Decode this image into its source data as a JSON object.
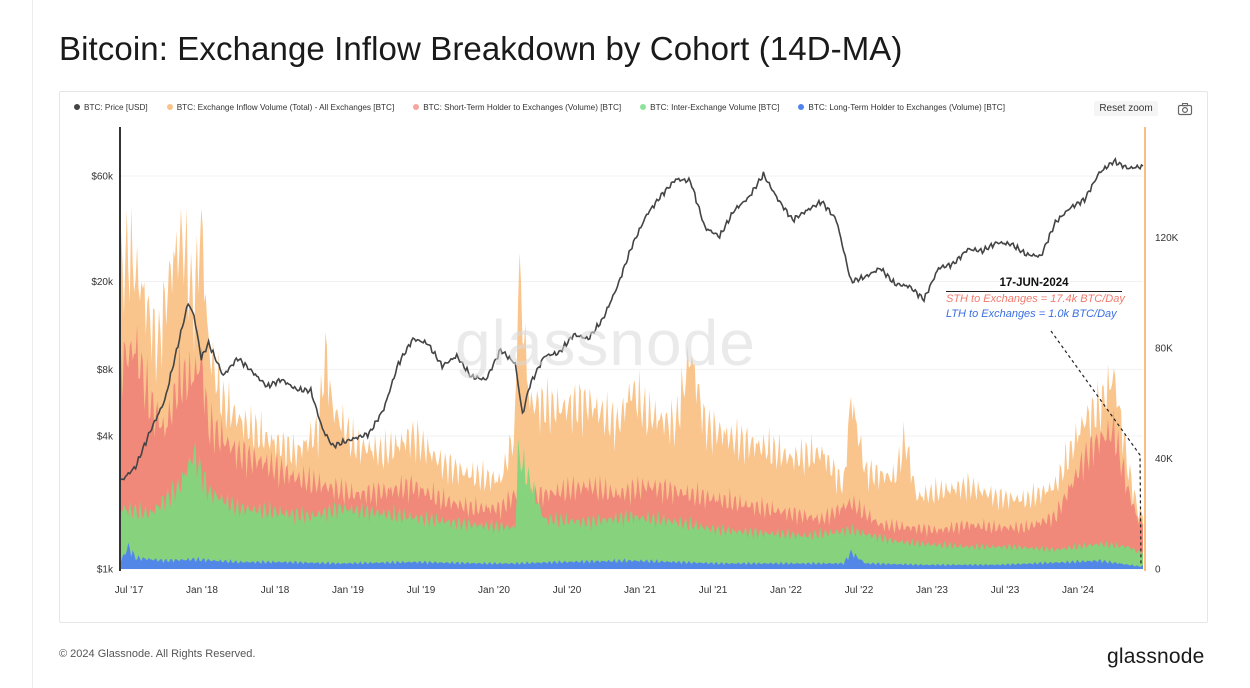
{
  "title": "Bitcoin: Exchange Inflow Breakdown by Cohort (14D-MA)",
  "copyright": "© 2024 Glassnode. All Rights Reserved.",
  "brand": "glassnode",
  "reset_zoom_label": "Reset zoom",
  "watermark": "glassnode",
  "colors": {
    "price": "#444444",
    "total": "#f9bf7f",
    "sth": "#f0867a",
    "inter": "#7fd67d",
    "lth": "#4f83ee"
  },
  "legend": [
    {
      "label": "BTC: Price [USD]",
      "color": "#444444"
    },
    {
      "label": "BTC: Exchange Inflow Volume (Total) - All Exchanges [BTC]",
      "color": "#f9c48a"
    },
    {
      "label": "BTC: Short-Term Holder to Exchanges (Volume) [BTC]",
      "color": "#f6a5a0"
    },
    {
      "label": "BTC: Inter-Exchange Volume [BTC]",
      "color": "#8ee39a"
    },
    {
      "label": "BTC: Long-Term Holder to Exchanges (Volume) [BTC]",
      "color": "#4f83ee"
    }
  ],
  "annotation": {
    "date": "17-JUN-2024",
    "sth": "STH to Exchanges = 17.4k BTC/Day",
    "lth": "LTH to Exchanges = 1.0k BTC/Day"
  },
  "chart_data": {
    "type": "area",
    "title": "Bitcoin: Exchange Inflow Breakdown by Cohort (14D-MA)",
    "x_ticks": [
      "Jul '17",
      "Jan '18",
      "Jul '18",
      "Jan '19",
      "Jul '19",
      "Jan '20",
      "Jul '20",
      "Jan '21",
      "Jul '21",
      "Jan '22",
      "Jul '22",
      "Jan '23",
      "Jul '23",
      "Jan '24"
    ],
    "x_range": [
      2017.5,
      2024.5
    ],
    "y_left": {
      "scale": "log",
      "range": [
        1000,
        100000
      ],
      "ticks": [
        {
          "value": 1000,
          "label": "$1k"
        },
        {
          "value": 4000,
          "label": "$4k"
        },
        {
          "value": 8000,
          "label": "$8k"
        },
        {
          "value": 20000,
          "label": "$20k"
        },
        {
          "value": 60000,
          "label": "$60k"
        }
      ]
    },
    "y_right": {
      "scale": "linear",
      "range": [
        0,
        160000
      ],
      "ticks": [
        {
          "value": 0,
          "label": "0"
        },
        {
          "value": 40000,
          "label": "40K"
        },
        {
          "value": 80000,
          "label": "80K"
        },
        {
          "value": 120000,
          "label": "120K"
        }
      ]
    },
    "series": [
      {
        "name": "BTC: Price [USD]",
        "axis": "left",
        "x": [
          2017.5,
          2017.6,
          2017.7,
          2017.8,
          2017.9,
          2017.96,
          2018.0,
          2018.05,
          2018.1,
          2018.2,
          2018.3,
          2018.4,
          2018.5,
          2018.6,
          2018.7,
          2018.8,
          2018.88,
          2018.95,
          2019.0,
          2019.1,
          2019.2,
          2019.3,
          2019.4,
          2019.5,
          2019.6,
          2019.7,
          2019.8,
          2019.9,
          2020.0,
          2020.1,
          2020.2,
          2020.25,
          2020.3,
          2020.4,
          2020.5,
          2020.6,
          2020.7,
          2020.8,
          2020.9,
          2021.0,
          2021.1,
          2021.2,
          2021.3,
          2021.4,
          2021.5,
          2021.6,
          2021.7,
          2021.8,
          2021.9,
          2022.0,
          2022.1,
          2022.2,
          2022.3,
          2022.4,
          2022.5,
          2022.6,
          2022.7,
          2022.8,
          2022.9,
          2023.0,
          2023.1,
          2023.2,
          2023.3,
          2023.4,
          2023.5,
          2023.6,
          2023.7,
          2023.8,
          2023.9,
          2024.0,
          2024.1,
          2024.2,
          2024.3,
          2024.4,
          2024.47
        ],
        "values": [
          2500,
          2900,
          4200,
          5800,
          11000,
          16000,
          14000,
          9000,
          10500,
          7500,
          9000,
          7800,
          6700,
          7200,
          6500,
          6400,
          4300,
          3600,
          3700,
          3900,
          4100,
          5300,
          8500,
          11000,
          10500,
          8300,
          9200,
          7400,
          7200,
          9800,
          8500,
          5000,
          6800,
          9200,
          9500,
          11500,
          11000,
          13500,
          19000,
          29000,
          40000,
          49000,
          58000,
          57000,
          35000,
          32000,
          42000,
          48000,
          61000,
          47000,
          38000,
          42000,
          46000,
          38000,
          20000,
          21000,
          23000,
          19500,
          19000,
          16600,
          23000,
          24000,
          28000,
          27500,
          30000,
          29500,
          26500,
          26000,
          37000,
          43000,
          47000,
          62000,
          70000,
          65000,
          66000
        ]
      },
      {
        "name": "BTC: Exchange Inflow Volume (Total) - All Exchanges [BTC]",
        "axis": "right",
        "x": [
          2017.5,
          2017.55,
          2017.65,
          2017.75,
          2017.85,
          2017.92,
          2018.0,
          2018.05,
          2018.1,
          2018.2,
          2018.35,
          2018.5,
          2018.7,
          2018.85,
          2018.9,
          2018.95,
          2019.1,
          2019.3,
          2019.5,
          2019.7,
          2019.9,
          2020.1,
          2020.2,
          2020.22,
          2020.3,
          2020.5,
          2020.7,
          2020.9,
          2021.0,
          2021.1,
          2021.3,
          2021.4,
          2021.5,
          2021.7,
          2021.9,
          2022.1,
          2022.3,
          2022.45,
          2022.5,
          2022.6,
          2022.8,
          2022.87,
          2022.95,
          2023.1,
          2023.3,
          2023.5,
          2023.7,
          2023.9,
          2024.1,
          2024.2,
          2024.3,
          2024.4,
          2024.47
        ],
        "values": [
          105000,
          115000,
          100000,
          80000,
          110000,
          120000,
          95000,
          125000,
          80000,
          60000,
          52000,
          47000,
          42000,
          50000,
          78000,
          58000,
          45000,
          42000,
          48000,
          38000,
          34000,
          32000,
          50000,
          110000,
          60000,
          58000,
          60000,
          52000,
          65000,
          56000,
          52000,
          78000,
          52000,
          47000,
          44000,
          40000,
          42000,
          30000,
          62000,
          35000,
          33000,
          47000,
          26000,
          28000,
          30000,
          26000,
          25000,
          30000,
          54000,
          58000,
          70000,
          36000,
          20000
        ]
      },
      {
        "name": "BTC: Short-Term Holder to Exchanges (Volume) [BTC]",
        "axis": "right",
        "x": [
          2017.5,
          2017.6,
          2017.7,
          2017.8,
          2017.9,
          2018.0,
          2018.05,
          2018.1,
          2018.3,
          2018.5,
          2018.7,
          2018.9,
          2019.1,
          2019.3,
          2019.5,
          2019.7,
          2019.9,
          2020.1,
          2020.22,
          2020.3,
          2020.5,
          2020.7,
          2020.9,
          2021.1,
          2021.3,
          2021.5,
          2021.7,
          2021.9,
          2022.1,
          2022.3,
          2022.5,
          2022.7,
          2022.9,
          2023.1,
          2023.3,
          2023.5,
          2023.7,
          2023.9,
          2024.1,
          2024.2,
          2024.3,
          2024.4,
          2024.47
        ],
        "values": [
          75000,
          80000,
          60000,
          50000,
          68000,
          70000,
          75000,
          52000,
          42000,
          38000,
          33000,
          30000,
          27000,
          28000,
          30000,
          25000,
          22000,
          22000,
          28000,
          26000,
          28000,
          30000,
          27000,
          30000,
          28000,
          26000,
          24000,
          22000,
          20000,
          18000,
          24000,
          16000,
          15000,
          14000,
          16000,
          15000,
          15000,
          19000,
          40000,
          47000,
          50000,
          28000,
          17400
        ]
      },
      {
        "name": "BTC: Inter-Exchange Volume [BTC]",
        "axis": "right",
        "x": [
          2017.5,
          2017.7,
          2017.9,
          2018.0,
          2018.1,
          2018.3,
          2018.5,
          2018.8,
          2019.0,
          2019.3,
          2019.6,
          2019.9,
          2020.2,
          2020.22,
          2020.4,
          2020.7,
          2021.0,
          2021.3,
          2021.6,
          2021.9,
          2022.2,
          2022.5,
          2022.8,
          2023.0,
          2023.3,
          2023.6,
          2023.9,
          2024.2,
          2024.4,
          2024.47
        ],
        "values": [
          22000,
          20000,
          30000,
          42000,
          28000,
          22000,
          21000,
          19000,
          22000,
          20000,
          18000,
          16000,
          15000,
          42000,
          18000,
          17000,
          19000,
          17000,
          14000,
          13000,
          12000,
          14000,
          10000,
          9000,
          8000,
          8000,
          7000,
          9000,
          8000,
          6000
        ]
      },
      {
        "name": "BTC: Long-Term Holder to Exchanges (Volume) [BTC]",
        "axis": "right",
        "x": [
          2017.5,
          2017.55,
          2017.6,
          2017.8,
          2018.0,
          2018.3,
          2018.6,
          2019.0,
          2019.5,
          2020.0,
          2020.2,
          2020.5,
          2021.0,
          2021.3,
          2021.6,
          2022.0,
          2022.45,
          2022.5,
          2022.6,
          2023.0,
          2023.5,
          2024.0,
          2024.2,
          2024.47
        ],
        "values": [
          3000,
          8000,
          4000,
          3000,
          3500,
          2500,
          2500,
          2000,
          2500,
          2000,
          2000,
          2500,
          3000,
          2500,
          2000,
          2000,
          2000,
          6000,
          2000,
          1500,
          1500,
          2500,
          3000,
          1000
        ]
      }
    ]
  }
}
